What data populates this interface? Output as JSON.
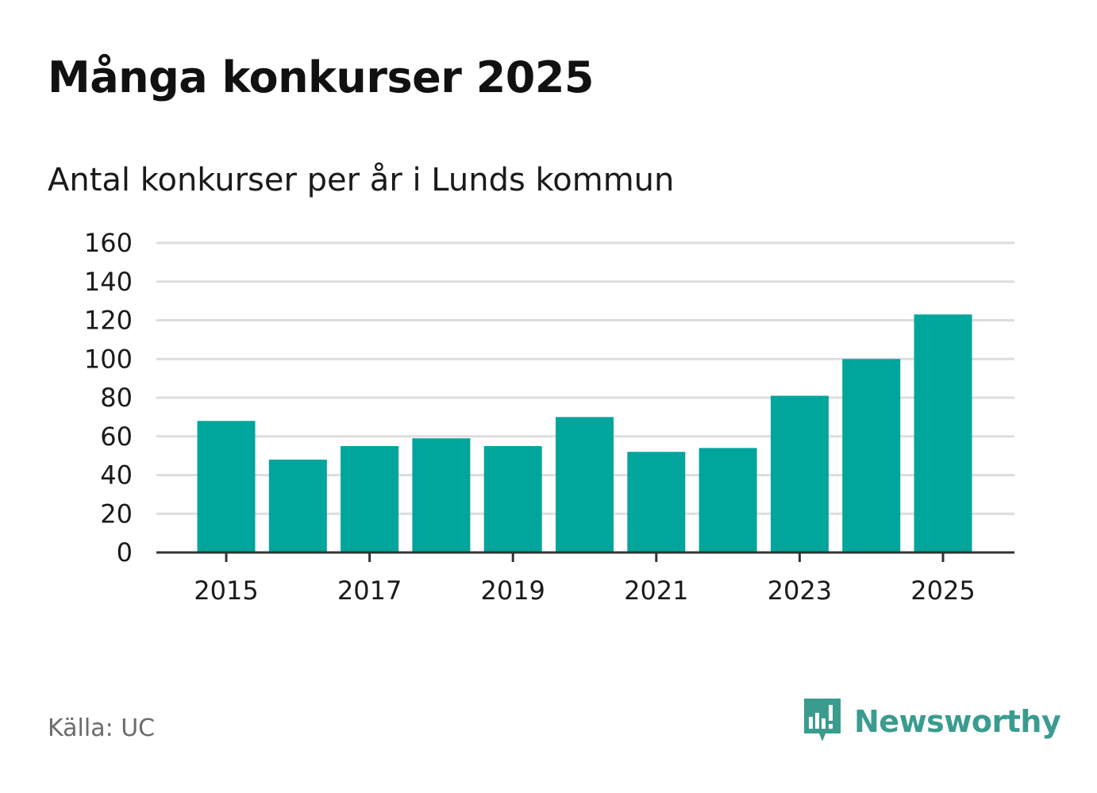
{
  "title": "Många konkurser 2025",
  "subtitle": "Antal konkurser per år i Lunds kommun",
  "source": "Källa: UC",
  "brand": {
    "name": "Newsworthy",
    "logo_icon": "newsworthy-chart-bubble-icon",
    "color": "#3a9c8f"
  },
  "colors": {
    "bar": "#00a59b",
    "grid": "#dddddd",
    "axis": "#333333"
  },
  "chart_data": {
    "type": "bar",
    "categories": [
      "2015",
      "2016",
      "2017",
      "2018",
      "2019",
      "2020",
      "2021",
      "2022",
      "2023",
      "2024",
      "2025"
    ],
    "values": [
      68,
      48,
      55,
      59,
      55,
      70,
      52,
      54,
      81,
      100,
      123
    ],
    "x_tick_labels": [
      "2015",
      "2017",
      "2019",
      "2021",
      "2023",
      "2025"
    ],
    "y_ticks": [
      0,
      20,
      40,
      60,
      80,
      100,
      120,
      140,
      160
    ],
    "ylim": [
      0,
      160
    ],
    "grid": true,
    "legend": "none"
  }
}
